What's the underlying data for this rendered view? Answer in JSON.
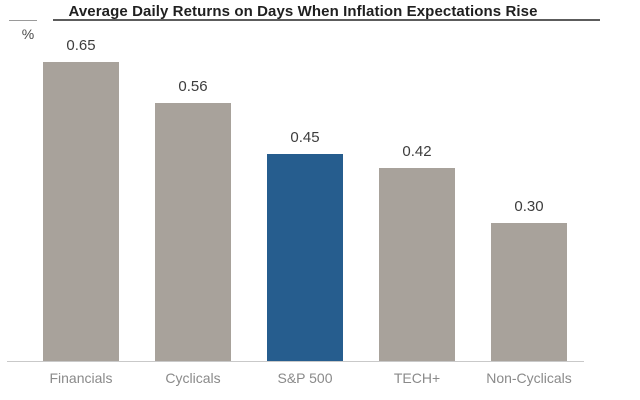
{
  "header": {
    "title": "Average Daily Returns on Days When Inflation Expectations Rise",
    "unit": "%"
  },
  "chart_data": {
    "type": "bar",
    "title": "Average Daily Returns on Days When Inflation Expectations Rise",
    "unit": "%",
    "categories": [
      "Financials",
      "Cyclicals",
      "S&P 500",
      "TECH+",
      "Non-Cyclicals"
    ],
    "values": [
      0.65,
      0.56,
      0.45,
      0.42,
      0.3
    ],
    "value_labels": [
      "0.65",
      "0.56",
      "0.45",
      "0.42",
      "0.30"
    ],
    "highlighted_category": "S&P 500",
    "xlabel": "",
    "ylabel": "%",
    "ylim": [
      0,
      0.72
    ],
    "grid": false,
    "legend": "none",
    "colors": {
      "bar_default": "#a8a29b",
      "bar_highlight": "#265d8e",
      "axis_line": "#c9c9c9",
      "title_underline": "#5c5c5c",
      "title_text": "#1f1f1f",
      "value_label_text": "#3d3d3d",
      "category_label_text": "#8a8a8a"
    }
  }
}
